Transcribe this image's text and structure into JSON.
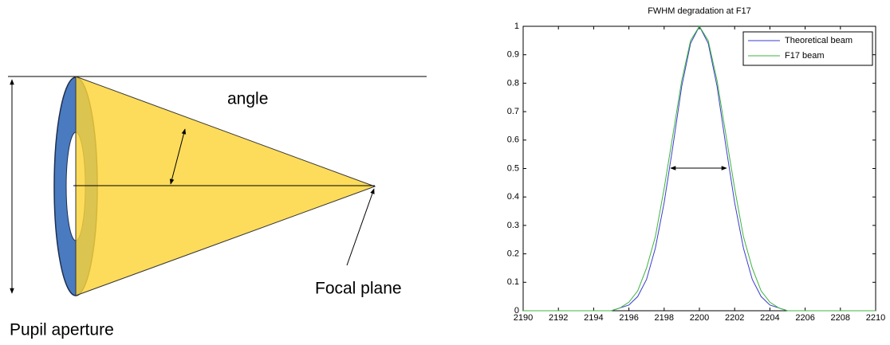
{
  "diagram": {
    "angle_label": "angle",
    "focal_label": "Focal plane",
    "aperture_label": "Pupil aperture"
  },
  "chart_data": {
    "type": "line",
    "title": "FWHM degradation at F17",
    "x": [
      2190,
      2192,
      2194,
      2195,
      2195.5,
      2196,
      2196.5,
      2197,
      2197.5,
      2198,
      2198.5,
      2199,
      2199.5,
      2200,
      2200.5,
      2201,
      2201.5,
      2202,
      2202.5,
      2203,
      2203.5,
      2204,
      2204.5,
      2205,
      2206,
      2208,
      2210
    ],
    "series": [
      {
        "name": "Theoretical beam",
        "color": "#3b3bd0",
        "values": [
          0,
          0,
          0,
          0,
          0.01,
          0.02,
          0.05,
          0.11,
          0.22,
          0.38,
          0.58,
          0.79,
          0.94,
          1,
          0.94,
          0.79,
          0.58,
          0.38,
          0.22,
          0.11,
          0.05,
          0.02,
          0.01,
          0,
          0,
          0,
          0
        ]
      },
      {
        "name": "F17 beam",
        "color": "#3cb43c",
        "values": [
          0,
          0,
          0,
          0,
          0.01,
          0.03,
          0.07,
          0.15,
          0.26,
          0.43,
          0.62,
          0.81,
          0.95,
          1,
          0.95,
          0.81,
          0.62,
          0.43,
          0.26,
          0.15,
          0.07,
          0.03,
          0.01,
          0,
          0,
          0,
          0
        ]
      }
    ],
    "xlim": [
      2190,
      2210
    ],
    "xticks": [
      2190,
      2192,
      2194,
      2196,
      2198,
      2200,
      2202,
      2204,
      2206,
      2208,
      2210
    ],
    "ylim": [
      0,
      1
    ],
    "yticks": [
      0,
      0.1,
      0.2,
      0.3,
      0.4,
      0.5,
      0.6,
      0.7,
      0.8,
      0.9,
      1
    ],
    "legend": "upper right"
  }
}
